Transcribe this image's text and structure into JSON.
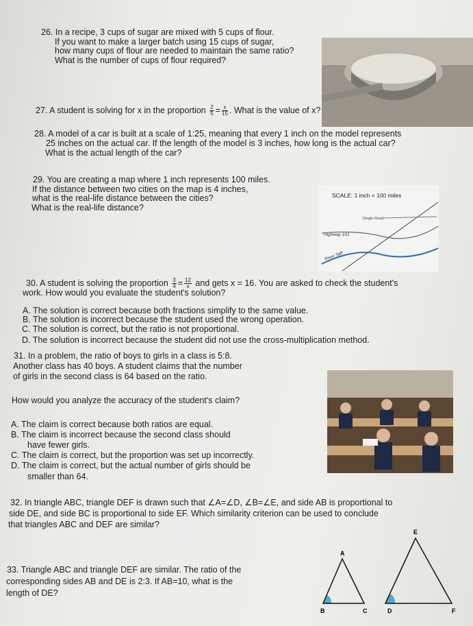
{
  "questions": [
    {
      "lines": [
        "26. In a recipe, 3 cups of sugar are mixed with 5 cups of flour.",
        "If you want to make a larger batch using 15 cups of sugar,",
        "how many cups of flour are needed to maintain the same ratio?",
        "What is the number of cups of flour required?"
      ]
    },
    {
      "text_before": "27. A student is solving for x in the proportion",
      "fraction_left": {
        "num": "2",
        "den": "5"
      },
      "equals": "=",
      "fraction_right": {
        "num": "x",
        "den": "15"
      },
      "text_after": ". What is the value of x?"
    },
    {
      "lines": [
        "28. A model of a car is built at a scale of 1:25, meaning that every 1 inch on the model represents",
        "25 inches on the actual car. If the length of the model is 3 inches, how long is the actual car?",
        "What is the actual length of the car?"
      ]
    },
    {
      "lines": [
        "29. You are creating a map where 1 inch represents 100 miles.",
        "If the distance between two cities on the map is 4 inches,",
        "what is the real-life distance between the cities?",
        "What is the real-life distance?"
      ],
      "map": {
        "scale": "SCALE: 1 inch = 100 miles",
        "highway": "Highway 101",
        "river": "River Taff",
        "road": "Dingle Road"
      }
    },
    {
      "text_before": "30. A student is solving the proportion",
      "fraction_left": {
        "num": "3",
        "den": "4"
      },
      "equals": "=",
      "fraction_right": {
        "num": "12",
        "den": "x"
      },
      "text_after": "and gets x = 16. You are asked to check the student's",
      "lines": [
        "work. How would you evaluate the student's solution?"
      ],
      "options": [
        "A. The solution is correct because both fractions simplify to the same value.",
        "B. The solution is incorrect because the student used the wrong operation.",
        "C. The solution is correct, but the ratio is not proportional.",
        "D. The solution is incorrect because the student did not use the cross-multiplication method."
      ]
    },
    {
      "lines": [
        "31. In a problem, the ratio of boys to girls in a class is 5:8.",
        "Another class has 40 boys. A student claims that the number",
        "of girls in the second class is 64 based on the ratio."
      ],
      "prompt": "How would you analyze the accuracy of the student's claim?",
      "options": [
        [
          "A. The claim is correct because both ratios are equal."
        ],
        [
          "B. The claim is incorrect because the second class should",
          "have fewer girls."
        ],
        [
          "C. The claim is correct, but the proportion was set up incorrectly."
        ],
        [
          "D. The claim is correct, but the actual number of girls should be",
          "smaller than 64."
        ]
      ]
    },
    {
      "lines": [
        "32. In triangle ABC, triangle DEF is drawn such that ∠A=∠D, ∠B=∠E, and side AB is proportional to",
        "side DE, and side BC is proportional to side EF. Which similarity criterion can be used to conclude",
        "that triangles ABC and DEF are similar?"
      ]
    },
    {
      "lines": [
        "33. Triangle ABC and triangle DEF are similar. The ratio of the",
        "corresponding sides AB and DE is 2:3. If AB=10, what is the",
        "length of DE?"
      ],
      "triangles": {
        "labels": [
          "A",
          "B",
          "C",
          "D",
          "E",
          "F"
        ]
      }
    }
  ]
}
